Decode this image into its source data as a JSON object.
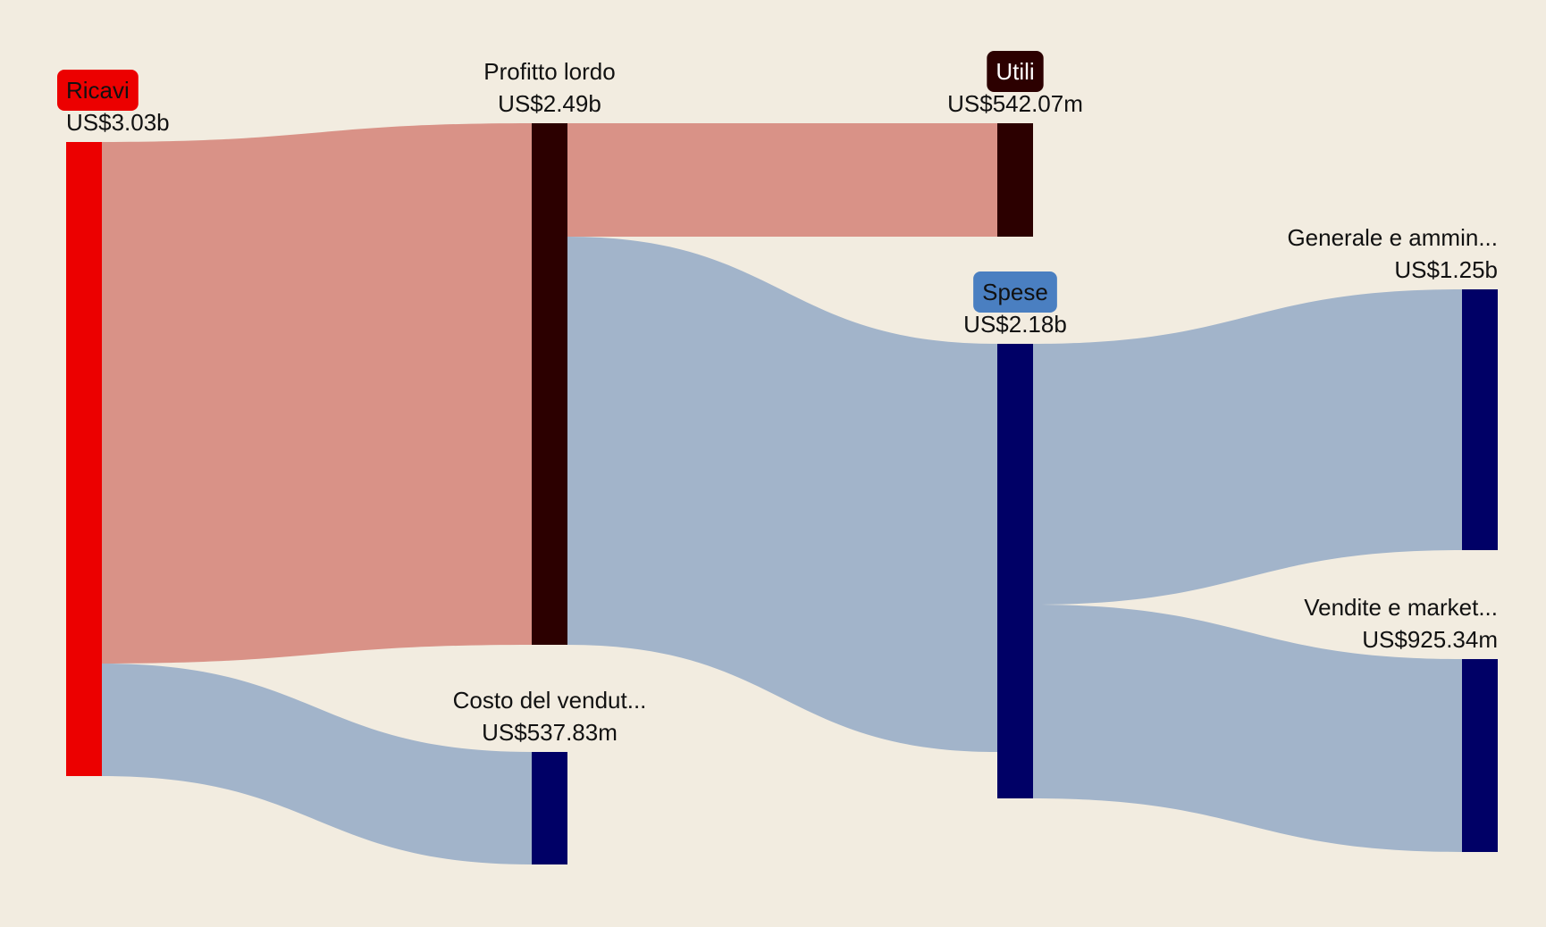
{
  "diagram": {
    "type": "sankey",
    "colors": {
      "background": "#f2ece0",
      "link_profit": "#d99287",
      "link_cost": "#a2b4ca"
    },
    "nodes": [
      {
        "id": "ricavi",
        "label": "Ricavi",
        "value_label": "US$3.03b",
        "color": "#ec0000",
        "badge": true,
        "badge_color": "#ec0000",
        "badge_text_color": "#111111"
      },
      {
        "id": "profitto",
        "label": "Profitto lordo",
        "value_label": "US$2.49b",
        "color": "#2c0000",
        "badge": false
      },
      {
        "id": "costo",
        "label": "Costo del vendut...",
        "value_label": "US$537.83m",
        "color": "#000066",
        "badge": false
      },
      {
        "id": "utili",
        "label": "Utili",
        "value_label": "US$542.07m",
        "color": "#2c0000",
        "badge": true,
        "badge_color": "#2c0000",
        "badge_text_color": "#ffffff"
      },
      {
        "id": "spese",
        "label": "Spese",
        "value_label": "US$2.18b",
        "color": "#000066",
        "badge": true,
        "badge_color": "#4a7fc1",
        "badge_text_color": "#111111"
      },
      {
        "id": "generale",
        "label": "Generale e ammin...",
        "value_label": "US$1.25b",
        "color": "#000066",
        "badge": false
      },
      {
        "id": "vendite",
        "label": "Vendite e market...",
        "value_label": "US$925.34m",
        "color": "#000066",
        "badge": false
      }
    ],
    "links": [
      {
        "source": "ricavi",
        "target": "profitto",
        "kind": "profit"
      },
      {
        "source": "ricavi",
        "target": "costo",
        "kind": "cost"
      },
      {
        "source": "profitto",
        "target": "utili",
        "kind": "profit"
      },
      {
        "source": "profitto",
        "target": "spese",
        "kind": "cost"
      },
      {
        "source": "spese",
        "target": "generale",
        "kind": "cost"
      },
      {
        "source": "spese",
        "target": "vendite",
        "kind": "cost"
      }
    ]
  }
}
